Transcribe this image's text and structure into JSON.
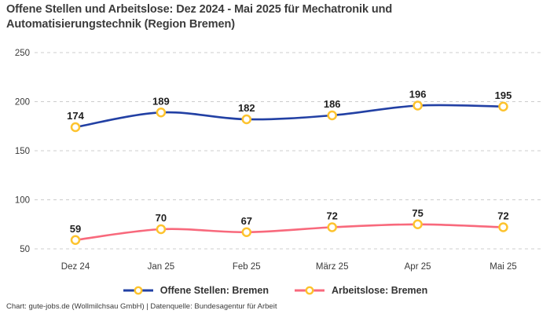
{
  "title": "Offene Stellen und Arbeitslose: Dez 2024 - Mai 2025 für Mechatronik und Automatisierungstechnik (Region Bremen)",
  "title_lines": [
    "Offene Stellen und Arbeitslose: Dez 2024 - Mai 2025 für Mechatronik und",
    "Automatisierungstechnik (Region Bremen)"
  ],
  "footer": "Chart: gute-jobs.de (Wollmilchsau GmbH) | Datenquelle: Bundesagentur für Arbeit",
  "colors": {
    "series1": "#2240a4",
    "series2": "#f8697c",
    "marker_stroke": "#fdc32e",
    "marker_fill": "#ffffff",
    "grid": "#cccccc",
    "tick_text": "#3a3a3a",
    "value_label": "#1f1f1f",
    "title_text": "#3b3b3b"
  },
  "chart_data": {
    "type": "line",
    "title": "Offene Stellen und Arbeitslose: Dez 2024 - Mai 2025 für Mechatronik und Automatisierungstechnik (Region Bremen)",
    "categories": [
      "Dez 24",
      "Jan 25",
      "Feb 25",
      "März 25",
      "Apr 25",
      "Mai 25"
    ],
    "series": [
      {
        "name": "Offene Stellen: Bremen",
        "color": "#2240a4",
        "values": [
          174,
          189,
          182,
          186,
          196,
          195
        ]
      },
      {
        "name": "Arbeitslose: Bremen",
        "color": "#f8697c",
        "values": [
          59,
          70,
          67,
          72,
          75,
          72
        ]
      }
    ],
    "xlabel": "",
    "ylabel": "",
    "ylim": [
      50,
      250
    ],
    "yticks": [
      50,
      100,
      150,
      200,
      250
    ],
    "grid": "horizontal-dashed",
    "legend_position": "bottom",
    "data_labels": true,
    "marker": {
      "fill": "#ffffff",
      "stroke": "#fdc32e"
    }
  }
}
